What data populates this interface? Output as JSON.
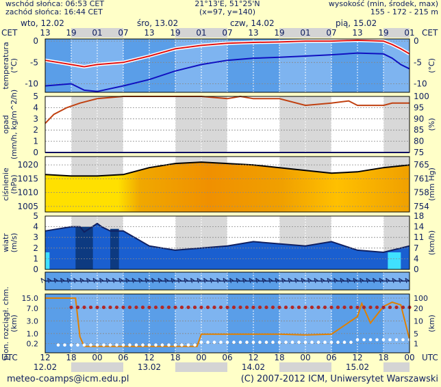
{
  "header": {
    "sunrise": "wschód słońca: 06:53 CET",
    "sunset": "zachód słońca: 16:44 CET",
    "coords": "21°13'E, 51°25'N",
    "grid": "(x=97, y=140)",
    "alt_label": "wysokość (min, środek, max)",
    "alt_values": "155 - 172 - 215 m"
  },
  "days": [
    "wto, 12.02",
    "śro, 13.02",
    "czw, 14.02",
    "pią, 15.02"
  ],
  "tz_top": "CET",
  "tz_bottom": "UTC",
  "top_hours": [
    "13",
    "19",
    "01",
    "07",
    "13",
    "19",
    "01",
    "07",
    "13",
    "19",
    "01",
    "07",
    "13",
    "19",
    "01"
  ],
  "bottom_hours": [
    "12",
    "18",
    "00",
    "06",
    "12",
    "18",
    "00",
    "06",
    "12",
    "18",
    "00",
    "06",
    "12",
    "18",
    "00"
  ],
  "bottom_dates": [
    "12.02",
    "13.02",
    "14.02",
    "15.02"
  ],
  "footer": {
    "email": "meteo-coamps@icm.edu.pl",
    "copyright": "(C) 2007-2012 ICM, Uniwersytet Warszawski"
  },
  "colors": {
    "background": "#ffffc8",
    "text": "#102060",
    "temp_max": "#e01010",
    "temp_min": "#1010c0",
    "humidity": "#c04010",
    "cloud_base": "#e08000",
    "wind": "#1a5fd0"
  },
  "chart_data": [
    {
      "type": "line",
      "ylabel": "temperatura (°C)",
      "ylabel_left": [
        "temperatura",
        "(°C)"
      ],
      "ylabel_right": [
        "(°C)"
      ],
      "ylim": [
        -12,
        0.5
      ],
      "ticks_left": [
        0,
        -5,
        -10
      ],
      "ticks_right": [
        0,
        -5,
        -10
      ],
      "x_hours": [
        0,
        6,
        9,
        12,
        18,
        24,
        30,
        36,
        42,
        48,
        54,
        60,
        66,
        72,
        78,
        80,
        82,
        84
      ],
      "series": [
        {
          "role": "max",
          "values": [
            -4.5,
            -5.5,
            -6.0,
            -5.5,
            -5.0,
            -3.5,
            -1.8,
            -1.0,
            -0.5,
            -0.3,
            -0.2,
            0,
            0,
            0.2,
            0,
            -0.8,
            -1.8,
            -3.0
          ]
        },
        {
          "role": "min",
          "values": [
            -10.5,
            -10.0,
            -11.5,
            -11.8,
            -10.5,
            -9.0,
            -7.0,
            -5.5,
            -4.5,
            -4.0,
            -3.8,
            -3.5,
            -3.2,
            -2.8,
            -3.0,
            -4.0,
            -5.5,
            -6.5
          ]
        }
      ]
    },
    {
      "type": "line",
      "ylabel": "opad (mm/h, kg/m^2/h)",
      "ylabel_left": [
        "opad",
        "(mm/h, kg/m^2/h)"
      ],
      "ylabel_right": [
        "(%)"
      ],
      "ylim": [
        0,
        5
      ],
      "ticks_left": [
        5,
        4,
        3,
        2,
        1,
        0
      ],
      "ticks_right": [
        "100",
        "95",
        "90",
        "85",
        "80",
        "75"
      ],
      "humidity_x": [
        0,
        2,
        5,
        8,
        12,
        18,
        24,
        30,
        36,
        42,
        45,
        48,
        54,
        60,
        66,
        70,
        72,
        78,
        80,
        84
      ],
      "humidity_pct": [
        88,
        92,
        95,
        97,
        99,
        100,
        100,
        100,
        100,
        99,
        100,
        99,
        99,
        96,
        97,
        98,
        96,
        96,
        97,
        97
      ],
      "precip_mm_h": [
        0,
        0,
        0,
        0,
        0,
        0,
        0,
        0,
        0,
        0,
        0,
        0,
        0,
        0,
        0,
        0,
        0,
        0,
        0,
        0
      ]
    },
    {
      "type": "area",
      "ylabel": "ciśnienie (hPa)",
      "ylabel_left": [
        "ciśnienie",
        "(hPa)"
      ],
      "ylabel_right": [
        "(mm Hg)"
      ],
      "ylim": [
        1003,
        1023
      ],
      "ticks_left": [
        1020,
        1015,
        1010,
        1005
      ],
      "ticks_right": [
        "765",
        "761",
        "758",
        "754"
      ],
      "x_hours": [
        0,
        6,
        12,
        18,
        24,
        30,
        36,
        42,
        48,
        54,
        60,
        66,
        72,
        78,
        84
      ],
      "values": [
        1016.5,
        1016,
        1016,
        1016.5,
        1019,
        1020.5,
        1021,
        1020.5,
        1020,
        1019,
        1018,
        1017,
        1017.5,
        1019,
        1020
      ]
    },
    {
      "type": "area",
      "ylabel": "wiatr (m/s)",
      "ylabel_left": [
        "wiatr",
        "(m/s)"
      ],
      "ylabel_right": [
        "(km/h)"
      ],
      "ylim": [
        0,
        5
      ],
      "ticks_left": [
        5,
        4,
        3,
        2,
        1,
        0
      ],
      "ticks_right": [
        "18",
        "14",
        "11",
        "7",
        "4",
        "0"
      ],
      "x_hours": [
        0,
        3,
        6,
        8,
        9,
        12,
        13,
        15,
        18,
        24,
        30,
        36,
        42,
        48,
        54,
        60,
        66,
        72,
        78,
        84
      ],
      "values": [
        3.6,
        3.8,
        4.0,
        4.0,
        3.5,
        4.3,
        4.0,
        3.6,
        3.6,
        2.2,
        1.8,
        2.0,
        2.2,
        2.6,
        2.4,
        2.2,
        2.6,
        1.8,
        1.6,
        2.2
      ]
    },
    {
      "type": "line",
      "ylabel": "pion. rozciągł. chm. (km)",
      "ylabel_left": [
        "pion. rozciągł. chm.",
        "(km)"
      ],
      "ylabel_right": [
        "(km)"
      ],
      "ylim": [
        0,
        15
      ],
      "ticks_left": [
        "15.0",
        "7.0",
        "3.0",
        "1.0",
        "0.2"
      ],
      "ticks_right": [
        "100",
        "20",
        "10",
        "5",
        "1"
      ],
      "cloud_x": [
        0,
        6,
        7,
        8,
        9,
        12,
        24,
        35,
        36,
        48,
        54,
        60,
        66,
        72,
        73,
        75,
        78,
        80,
        82,
        84
      ],
      "cloud_base_km": [
        15,
        15,
        15,
        0.6,
        0.15,
        0.1,
        0.1,
        0.1,
        0.9,
        0.9,
        0.9,
        0.8,
        0.9,
        4,
        10,
        2.5,
        8,
        11,
        9,
        0.4
      ],
      "dots_km": [
        7.5,
        7.5,
        7.5,
        7.5,
        7.5,
        7.5,
        7.5,
        7.5,
        7.5,
        7.5,
        7.5,
        7.5,
        7.5,
        7.5,
        7.5,
        7.5,
        7.5,
        7.5,
        7.5,
        7.5
      ]
    }
  ]
}
